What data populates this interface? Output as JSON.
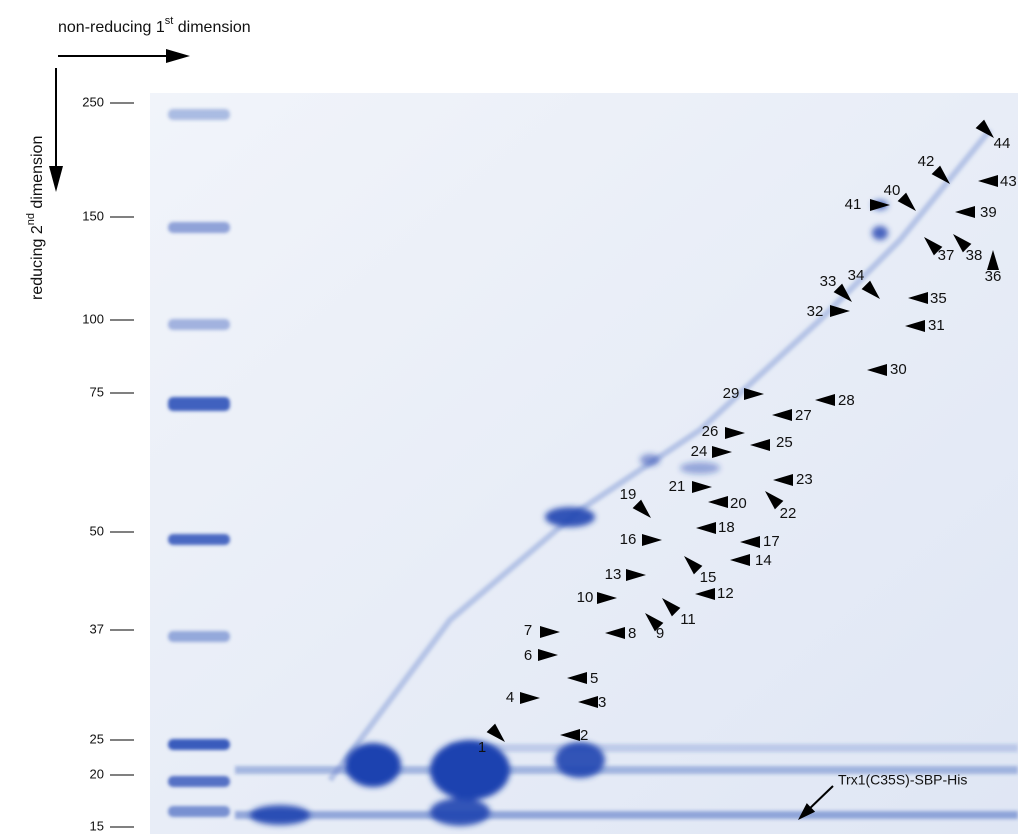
{
  "axis_labels": {
    "x": [
      "non-reducing 1",
      "st",
      " dimension"
    ],
    "y": [
      "reducing 2",
      "nd",
      " dimension"
    ]
  },
  "markers": [
    "250",
    "150",
    "100",
    "75",
    "50",
    "37",
    "25",
    "20",
    "15"
  ],
  "spots": [
    "1",
    "2",
    "3",
    "4",
    "5",
    "6",
    "7",
    "8",
    "9",
    "10",
    "11",
    "12",
    "13",
    "14",
    "15",
    "16",
    "17",
    "18",
    "19",
    "20",
    "21",
    "22",
    "23",
    "24",
    "25",
    "26",
    "27",
    "28",
    "29",
    "30",
    "31",
    "32",
    "33",
    "34",
    "35",
    "36",
    "37",
    "38",
    "39",
    "40",
    "41",
    "42",
    "43",
    "44"
  ],
  "bait_label": "Trx1(C35S)-SBP-His"
}
